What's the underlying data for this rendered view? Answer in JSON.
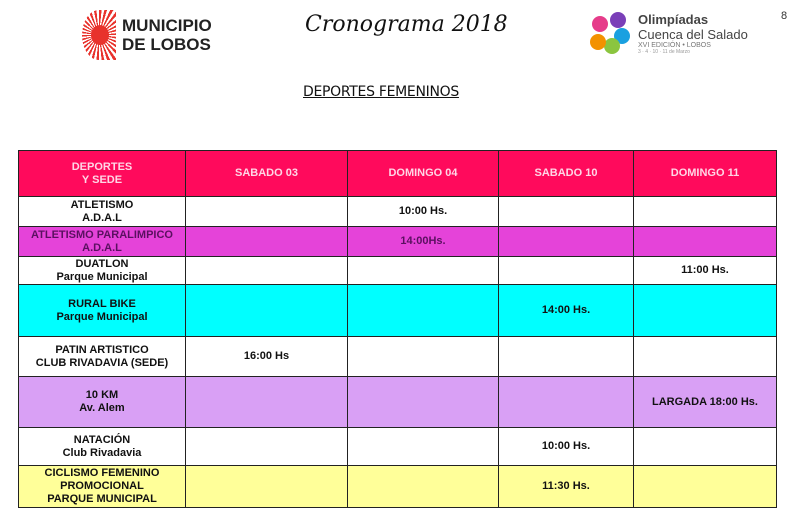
{
  "header": {
    "municipio_logo": "MUNICIPIO DE LOBOS",
    "title": "Cronograma 2018",
    "olimpiadas_logo": {
      "line1": "Olimpíadas",
      "line2": "Cuenca del Salado",
      "line3": "XVI EDICIÓN • LOBOS",
      "line4": "3 · 4 · 10 · 11 de Marzo"
    },
    "page_number": "8"
  },
  "subtitle": "DEPORTES FEMENINOS",
  "table": {
    "columns": [
      "DEPORTES\nY SEDE",
      "SABADO 03",
      "DOMINGO 04",
      "SABADO 10",
      "DOMINGO 11"
    ],
    "rows": [
      {
        "sport": "ATLETISMO",
        "venue": "A.D.A.L",
        "cells": [
          "",
          "10:00 Hs.",
          "",
          ""
        ],
        "color": "#ffffff"
      },
      {
        "sport": "ATLETISMO PARALIMPICO",
        "venue": "A.D.A.L",
        "cells": [
          "",
          "14:00Hs.",
          "",
          ""
        ],
        "color": "#e543d9"
      },
      {
        "sport": "DUATLON",
        "venue": "Parque Municipal",
        "cells": [
          "",
          "",
          "",
          "11:00 Hs."
        ],
        "color": "#ffffff"
      },
      {
        "sport": "RURAL BIKE",
        "venue": "Parque Municipal",
        "cells": [
          "",
          "",
          "14:00 Hs.",
          ""
        ],
        "color": "#00ffff"
      },
      {
        "sport": "PATIN ARTISTICO",
        "venue": "CLUB RIVADAVIA (SEDE)",
        "cells": [
          "16:00 Hs",
          "",
          "",
          ""
        ],
        "color": "#ffffff"
      },
      {
        "sport": "10 KM",
        "venue": "Av. Alem",
        "cells": [
          "",
          "",
          "",
          "LARGADA 18:00 Hs."
        ],
        "color": "#d9a0f5"
      },
      {
        "sport": "NATACIÓN",
        "venue": "Club Rivadavia",
        "cells": [
          "",
          "",
          "10:00 Hs.",
          ""
        ],
        "color": "#ffffff"
      },
      {
        "sport": "CICLISMO FEMENINO\nPROMOCIONAL",
        "venue": "PARQUE MUNICIPAL",
        "cells": [
          "",
          "",
          "11:30 Hs.",
          ""
        ],
        "color": "#ffff99"
      }
    ]
  },
  "colors": {
    "header": "#ff0a5c"
  }
}
